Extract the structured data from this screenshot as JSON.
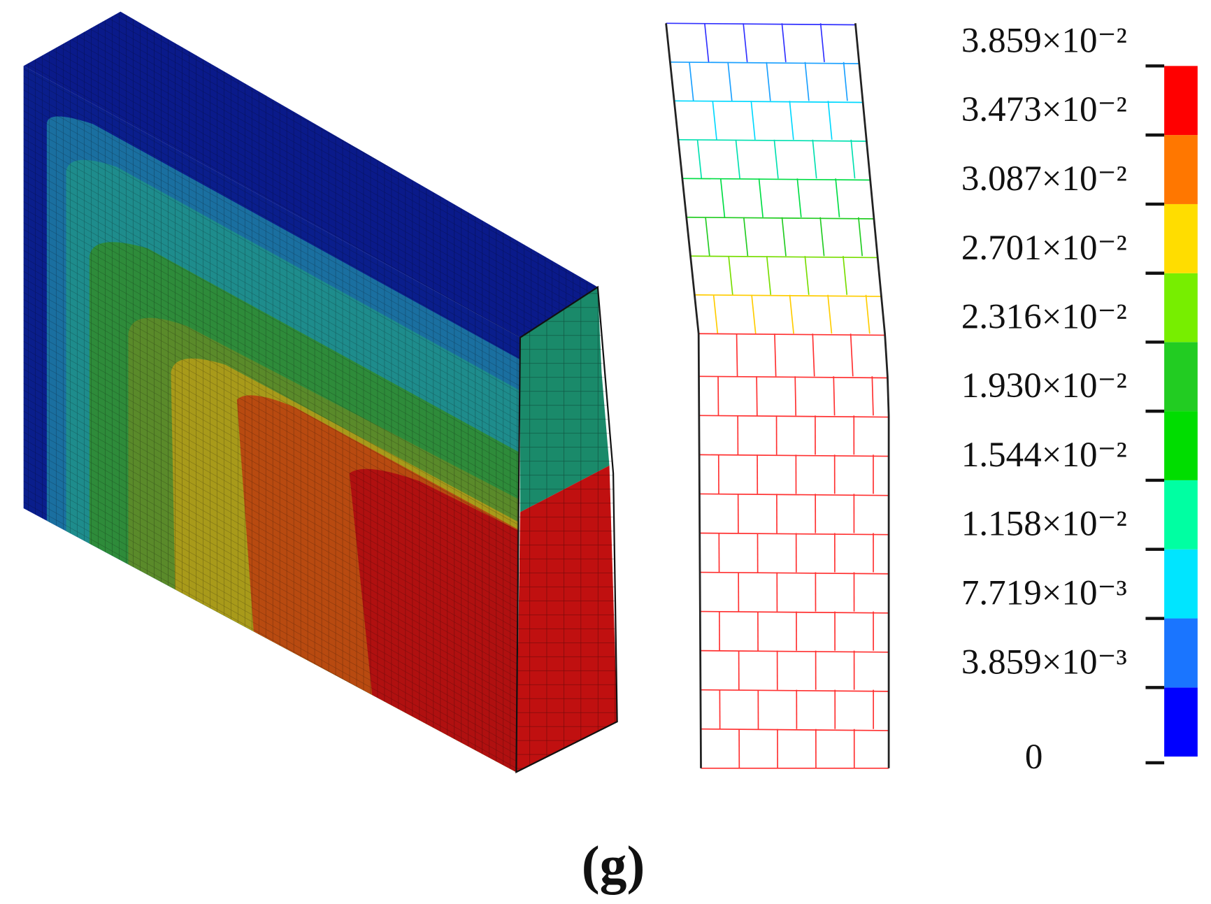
{
  "colorbar": {
    "ticks": [
      0,
      {
        "value": 0.003859,
        "label": "3.859×10⁻³"
      },
      {
        "value": 0.007719,
        "label": "7.719×10⁻³"
      },
      {
        "value": 0.01158,
        "label": "1.158×10⁻²"
      },
      {
        "value": 0.01544,
        "label": "1.544×10⁻²"
      },
      {
        "value": 0.0193,
        "label": "1.930×10⁻²"
      },
      {
        "value": 0.02316,
        "label": "2.316×10⁻²"
      },
      {
        "value": 0.02701,
        "label": "2.701×10⁻²"
      },
      {
        "value": 0.03087,
        "label": "3.087×10⁻²"
      },
      {
        "value": 0.03473,
        "label": "3.473×10⁻²"
      },
      {
        "value": 0.03859,
        "label": "3.859×10⁻²"
      }
    ],
    "colors": [
      "#0000ff",
      "#1a75ff",
      "#00e5ff",
      "#00ffa2",
      "#00dd00",
      "#22cc22",
      "#77ee00",
      "#ffdd00",
      "#ff7700",
      "#ff0000"
    ]
  },
  "caption": "(g)"
}
